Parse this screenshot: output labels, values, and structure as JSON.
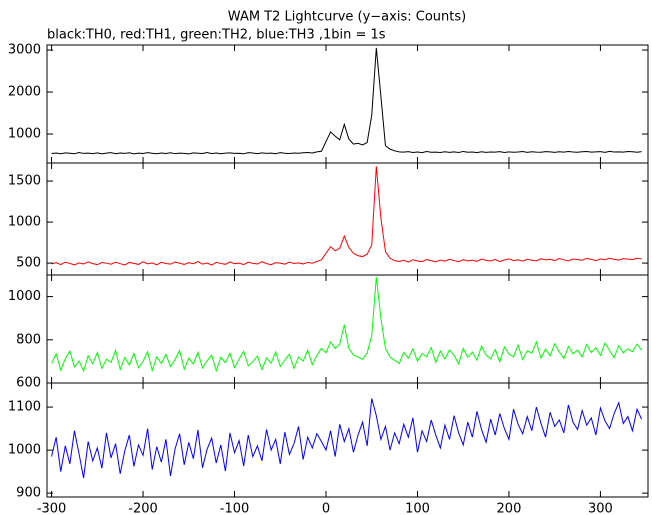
{
  "chart_data": [
    {
      "type": "line",
      "title": "WAM T2 Lightcurve (y−axis: Counts)",
      "subtitle": "black:TH0, red:TH1, green:TH2, blue:TH3 ,1bin = 1s",
      "x": [
        -300,
        -295,
        -290,
        -285,
        -280,
        -275,
        -270,
        -265,
        -260,
        -255,
        -250,
        -245,
        -240,
        -235,
        -230,
        -225,
        -220,
        -215,
        -210,
        -205,
        -200,
        -195,
        -190,
        -185,
        -180,
        -175,
        -170,
        -165,
        -160,
        -155,
        -150,
        -145,
        -140,
        -135,
        -130,
        -125,
        -120,
        -115,
        -110,
        -105,
        -100,
        -95,
        -90,
        -85,
        -80,
        -75,
        -70,
        -65,
        -60,
        -55,
        -50,
        -45,
        -40,
        -35,
        -30,
        -25,
        -20,
        -15,
        -10,
        -5,
        0,
        5,
        10,
        15,
        20,
        25,
        30,
        35,
        40,
        45,
        50,
        55,
        60,
        65,
        70,
        75,
        80,
        85,
        90,
        95,
        100,
        105,
        110,
        115,
        120,
        125,
        130,
        135,
        140,
        145,
        150,
        155,
        160,
        165,
        170,
        175,
        180,
        185,
        190,
        195,
        200,
        205,
        210,
        215,
        220,
        225,
        230,
        235,
        240,
        245,
        250,
        255,
        260,
        265,
        270,
        275,
        280,
        285,
        290,
        295,
        300,
        305,
        310,
        315,
        320,
        325,
        330,
        335,
        340,
        345
      ],
      "color": "#000000",
      "values": [
        535,
        548,
        530,
        552,
        541,
        529,
        560,
        538,
        545,
        533,
        550,
        527,
        544,
        556,
        531,
        547,
        539,
        553,
        528,
        545,
        536,
        558,
        541,
        530,
        549,
        537,
        555,
        532,
        546,
        540,
        528,
        551,
        543,
        536,
        559,
        534,
        548,
        530,
        545,
        552,
        538,
        541,
        529,
        556,
        547,
        533,
        550,
        539,
        544,
        531,
        558,
        542,
        536,
        549,
        541,
        553,
        560,
        548,
        575,
        590,
        820,
        1050,
        950,
        860,
        1230,
        880,
        760,
        780,
        740,
        800,
        1450,
        3050,
        1900,
        720,
        640,
        600,
        575,
        568,
        580,
        561,
        572,
        556,
        583,
        565,
        570,
        559,
        577,
        563,
        574,
        560,
        585,
        566,
        571,
        558,
        579,
        564,
        573,
        569,
        582,
        561,
        576,
        567,
        572,
        584,
        563,
        578,
        570,
        565,
        581,
        574,
        562,
        579,
        568,
        583,
        571,
        566,
        577,
        585,
        569,
        574,
        580,
        563,
        588,
        572,
        576,
        570,
        583,
        578,
        567,
        581
      ],
      "xlim": [
        -305,
        352
      ],
      "ylim": [
        310,
        3120
      ],
      "yticks": [
        1000,
        2000,
        3000
      ]
    },
    {
      "type": "line",
      "x": [
        -300,
        -295,
        -290,
        -285,
        -280,
        -275,
        -270,
        -265,
        -260,
        -255,
        -250,
        -245,
        -240,
        -235,
        -230,
        -225,
        -220,
        -215,
        -210,
        -205,
        -200,
        -195,
        -190,
        -185,
        -180,
        -175,
        -170,
        -165,
        -160,
        -155,
        -150,
        -145,
        -140,
        -135,
        -130,
        -125,
        -120,
        -115,
        -110,
        -105,
        -100,
        -95,
        -90,
        -85,
        -80,
        -75,
        -70,
        -65,
        -60,
        -55,
        -50,
        -45,
        -40,
        -35,
        -30,
        -25,
        -20,
        -15,
        -10,
        -5,
        0,
        5,
        10,
        15,
        20,
        25,
        30,
        35,
        40,
        45,
        50,
        55,
        60,
        65,
        70,
        75,
        80,
        85,
        90,
        95,
        100,
        105,
        110,
        115,
        120,
        125,
        130,
        135,
        140,
        145,
        150,
        155,
        160,
        165,
        170,
        175,
        180,
        185,
        190,
        195,
        200,
        205,
        210,
        215,
        220,
        225,
        230,
        235,
        240,
        245,
        250,
        255,
        260,
        265,
        270,
        275,
        280,
        285,
        290,
        295,
        300,
        305,
        310,
        315,
        320,
        325,
        330,
        335,
        340,
        345
      ],
      "color": "#ff0000",
      "values": [
        490,
        505,
        482,
        511,
        496,
        478,
        503,
        489,
        515,
        494,
        481,
        507,
        499,
        486,
        512,
        493,
        478,
        508,
        497,
        484,
        516,
        491,
        502,
        479,
        510,
        495,
        487,
        513,
        498,
        483,
        506,
        492,
        519,
        488,
        501,
        476,
        509,
        496,
        485,
        514,
        493,
        500,
        482,
        511,
        497,
        489,
        517,
        494,
        480,
        506,
        499,
        487,
        513,
        495,
        502,
        490,
        509,
        498,
        520,
        540,
        620,
        700,
        650,
        680,
        830,
        690,
        620,
        590,
        580,
        610,
        720,
        1680,
        1050,
        640,
        560,
        530,
        520,
        535,
        512,
        541,
        526,
        518,
        544,
        529,
        515,
        538,
        523,
        547,
        531,
        517,
        542,
        527,
        536,
        521,
        549,
        533,
        526,
        545,
        519,
        538,
        552,
        530,
        541,
        524,
        547,
        535,
        528,
        553,
        539,
        545,
        531,
        556,
        540,
        527,
        550,
        543,
        535,
        558,
        546,
        531,
        552,
        540,
        561,
        545,
        537,
        555,
        548,
        542,
        560,
        550
      ],
      "xlim": [
        -305,
        352
      ],
      "ylim": [
        355,
        1720
      ],
      "yticks": [
        500,
        1000,
        1500
      ]
    },
    {
      "type": "line",
      "x": [
        -300,
        -295,
        -290,
        -285,
        -280,
        -275,
        -270,
        -265,
        -260,
        -255,
        -250,
        -245,
        -240,
        -235,
        -230,
        -225,
        -220,
        -215,
        -210,
        -205,
        -200,
        -195,
        -190,
        -185,
        -180,
        -175,
        -170,
        -165,
        -160,
        -155,
        -150,
        -145,
        -140,
        -135,
        -130,
        -125,
        -120,
        -115,
        -110,
        -105,
        -100,
        -95,
        -90,
        -85,
        -80,
        -75,
        -70,
        -65,
        -60,
        -55,
        -50,
        -45,
        -40,
        -35,
        -30,
        -25,
        -20,
        -15,
        -10,
        -5,
        0,
        5,
        10,
        15,
        20,
        25,
        30,
        35,
        40,
        45,
        50,
        55,
        60,
        65,
        70,
        75,
        80,
        85,
        90,
        95,
        100,
        105,
        110,
        115,
        120,
        125,
        130,
        135,
        140,
        145,
        150,
        155,
        160,
        165,
        170,
        175,
        180,
        185,
        190,
        195,
        200,
        205,
        210,
        215,
        220,
        225,
        230,
        235,
        240,
        245,
        250,
        255,
        260,
        265,
        270,
        275,
        280,
        285,
        290,
        295,
        300,
        305,
        310,
        315,
        320,
        325,
        330,
        335,
        340,
        345
      ],
      "color": "#00ff00",
      "values": [
        690,
        735,
        660,
        712,
        748,
        675,
        702,
        655,
        726,
        689,
        741,
        668,
        710,
        695,
        752,
        663,
        718,
        684,
        737,
        671,
        700,
        745,
        658,
        721,
        690,
        733,
        676,
        709,
        750,
        664,
        715,
        688,
        742,
        670,
        703,
        729,
        657,
        719,
        694,
        738,
        672,
        711,
        747,
        680,
        698,
        725,
        662,
        716,
        691,
        744,
        677,
        707,
        733,
        668,
        720,
        701,
        752,
        685,
        728,
        760,
        740,
        790,
        760,
        780,
        870,
        760,
        730,
        720,
        710,
        740,
        820,
        1090,
        900,
        760,
        720,
        705,
        690,
        742,
        715,
        758,
        701,
        736,
        722,
        764,
        695,
        748,
        711,
        753,
        728,
        689,
        760,
        719,
        743,
        706,
        771,
        730,
        712,
        755,
        698,
        767,
        734,
        721,
        776,
        709,
        749,
        738,
        790,
        715,
        757,
        726,
        781,
        744,
        713,
        769,
        735,
        752,
        720,
        778,
        741,
        764,
        728,
        785,
        750,
        717,
        773,
        739,
        758,
        745,
        780,
        752
      ],
      "xlim": [
        -305,
        352
      ],
      "ylim": [
        600,
        1100
      ],
      "yticks": [
        600,
        800,
        1000
      ]
    },
    {
      "type": "line",
      "x": [
        -300,
        -295,
        -290,
        -285,
        -280,
        -275,
        -270,
        -265,
        -260,
        -255,
        -250,
        -245,
        -240,
        -235,
        -230,
        -225,
        -220,
        -215,
        -210,
        -205,
        -200,
        -195,
        -190,
        -185,
        -180,
        -175,
        -170,
        -165,
        -160,
        -155,
        -150,
        -145,
        -140,
        -135,
        -130,
        -125,
        -120,
        -115,
        -110,
        -105,
        -100,
        -95,
        -90,
        -85,
        -80,
        -75,
        -70,
        -65,
        -60,
        -55,
        -50,
        -45,
        -40,
        -35,
        -30,
        -25,
        -20,
        -15,
        -10,
        -5,
        0,
        5,
        10,
        15,
        20,
        25,
        30,
        35,
        40,
        45,
        50,
        55,
        60,
        65,
        70,
        75,
        80,
        85,
        90,
        95,
        100,
        105,
        110,
        115,
        120,
        125,
        130,
        135,
        140,
        145,
        150,
        155,
        160,
        165,
        170,
        175,
        180,
        185,
        190,
        195,
        200,
        205,
        210,
        215,
        220,
        225,
        230,
        235,
        240,
        245,
        250,
        255,
        260,
        265,
        270,
        275,
        280,
        285,
        290,
        295,
        300,
        305,
        310,
        315,
        320,
        325,
        330,
        335,
        340,
        345
      ],
      "color": "#0000ff",
      "values": [
        985,
        1030,
        950,
        1010,
        968,
        1045,
        992,
        935,
        1020,
        975,
        1005,
        958,
        1040,
        982,
        1015,
        945,
        998,
        1035,
        962,
        1012,
        988,
        1050,
        955,
        1008,
        972,
        1025,
        940,
        1003,
        1038,
        966,
        1018,
        980,
        1047,
        959,
        1002,
        1028,
        970,
        1012,
        951,
        1040,
        994,
        1022,
        963,
        1035,
        985,
        1010,
        975,
        1048,
        1000,
        1025,
        968,
        1042,
        990,
        1015,
        1055,
        978,
        1030,
        1005,
        1038,
        1020,
        1000,
        1045,
        985,
        1060,
        1020,
        1050,
        995,
        1035,
        1065,
        1010,
        1120,
        1080,
        1025,
        1055,
        1000,
        1040,
        1015,
        1060,
        1030,
        1075,
        995,
        1045,
        1020,
        1070,
        1035,
        1005,
        1058,
        1025,
        1080,
        1040,
        1012,
        1065,
        1030,
        1090,
        1048,
        1018,
        1072,
        1035,
        1085,
        1050,
        1025,
        1095,
        1060,
        1038,
        1078,
        1045,
        1100,
        1062,
        1030,
        1088,
        1055,
        1070,
        1040,
        1105,
        1065,
        1048,
        1092,
        1058,
        1075,
        1035,
        1098,
        1068,
        1050,
        1085,
        1110,
        1062,
        1078,
        1045,
        1095,
        1072
      ],
      "xlim": [
        -305,
        352
      ],
      "ylim": [
        891,
        1156
      ],
      "yticks": [
        900,
        1000,
        1100
      ],
      "xticks": [
        -300,
        -200,
        -100,
        0,
        100,
        200,
        300
      ]
    }
  ]
}
